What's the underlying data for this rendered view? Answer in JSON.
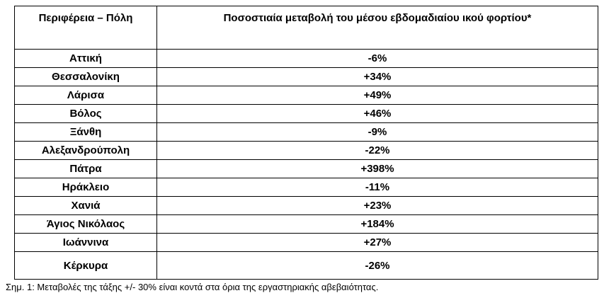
{
  "table": {
    "header": [
      "Περιφέρεια – Πόλη",
      "Ποσοστιαία μεταβολή του μέσου εβδομαδιαίου ικού φορτίου*"
    ],
    "rows": [
      [
        "Αττική",
        "-6%"
      ],
      [
        "Θεσσαλονίκη",
        "+34%"
      ],
      [
        "Λάρισα",
        "+49%"
      ],
      [
        "Βόλος",
        "+46%"
      ],
      [
        "Ξάνθη",
        "-9%"
      ],
      [
        "Αλεξανδρούπολη",
        "-22%"
      ],
      [
        "Πάτρα",
        "+398%"
      ],
      [
        "Ηράκλειο",
        "-11%"
      ],
      [
        "Χανιά",
        "+23%"
      ],
      [
        "Άγιος Νικόλαος",
        "+184%"
      ],
      [
        "Ιωάννινα",
        "+27%"
      ],
      [
        "Κέρκυρα",
        "-26%"
      ]
    ]
  },
  "note": "Σημ. 1: Μεταβολές της τάξης +/- 30% είναι κοντά στα όρια της εργαστηριακής αβεβαιότητας."
}
